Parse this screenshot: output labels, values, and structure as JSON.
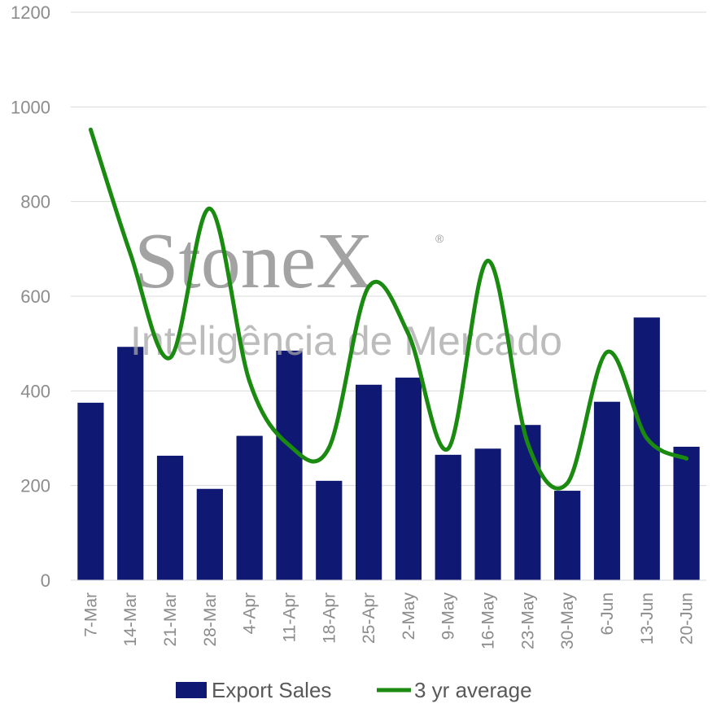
{
  "chart_data": {
    "type": "bar",
    "categories": [
      "7-Mar",
      "14-Mar",
      "21-Mar",
      "28-Mar",
      "4-Apr",
      "11-Apr",
      "18-Apr",
      "25-Apr",
      "2-May",
      "9-May",
      "16-May",
      "23-May",
      "30-May",
      "6-Jun",
      "13-Jun",
      "20-Jun"
    ],
    "series": [
      {
        "name": "Export Sales",
        "type": "bar",
        "color": "#0f1872",
        "values": [
          375,
          493,
          263,
          193,
          305,
          485,
          210,
          413,
          428,
          265,
          278,
          328,
          189,
          377,
          555,
          282
        ]
      },
      {
        "name": "3 yr average",
        "type": "line",
        "smooth": true,
        "color": "#1a8a10",
        "values": [
          952,
          690,
          470,
          785,
          420,
          285,
          280,
          620,
          520,
          278,
          675,
          290,
          205,
          482,
          300,
          257
        ]
      }
    ],
    "yticks": [
      0,
      200,
      400,
      600,
      800,
      1000,
      1200
    ],
    "ylim": [
      0,
      1200
    ],
    "grid": true,
    "legend_position": "bottom",
    "title": "",
    "xlabel": "",
    "ylabel": ""
  },
  "watermark": {
    "brand": "StoneX",
    "registered_mark": "®",
    "subtitle": "Inteligência de Mercado"
  }
}
